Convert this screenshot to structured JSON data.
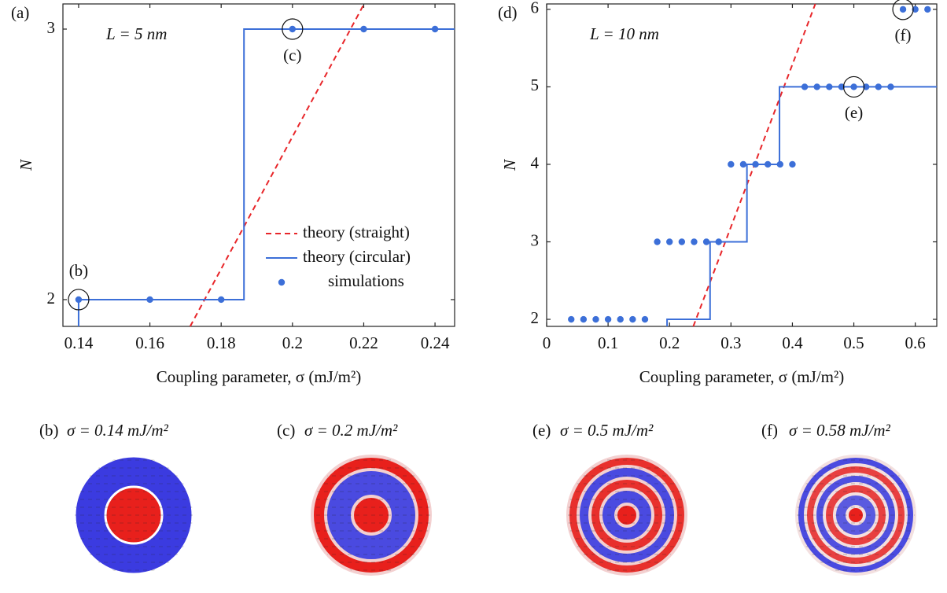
{
  "chart_data": [
    {
      "type": "line",
      "panel": "(a)",
      "text_annotation": "L = 5 nm",
      "xlabel": "Coupling parameter, σ (mJ/m²)",
      "ylabel": "N",
      "xlim": [
        0.1356,
        0.2455
      ],
      "ylim": [
        1.901,
        3.093
      ],
      "xticks": [
        0.14,
        0.16,
        0.18,
        0.2,
        0.22,
        0.24
      ],
      "yticks": [
        2,
        3
      ],
      "grid": false,
      "legend": "lower right",
      "series": [
        {
          "name": "theory (straight)",
          "style": "dashed",
          "color": "#e8262a",
          "x": [
            0.1713,
            0.2201
          ],
          "y": [
            1.901,
            3.093
          ]
        },
        {
          "name": "theory (circular)",
          "style": "solid",
          "color": "#3c6fd8",
          "x": [
            0.14,
            0.14,
            0.1864,
            0.1864,
            0.2455
          ],
          "y": [
            1.901,
            2,
            2,
            3,
            3
          ]
        },
        {
          "name": "simulations",
          "style": "markers",
          "color": "#3c6fd8",
          "x": [
            0.14,
            0.16,
            0.18,
            0.2,
            0.22,
            0.24
          ],
          "y": [
            2,
            2,
            2,
            3,
            3,
            3
          ]
        }
      ],
      "annotations": [
        {
          "text": "(b)",
          "x": 0.14,
          "y": 2
        },
        {
          "text": "(c)",
          "x": 0.2,
          "y": 3
        }
      ]
    },
    {
      "type": "line",
      "panel": "(d)",
      "text_annotation": "L = 10 nm",
      "xlabel": "Coupling parameter, σ (mJ/m²)",
      "ylabel": "N",
      "xlim": [
        0,
        0.635
      ],
      "ylim": [
        1.909,
        6.07
      ],
      "xticks": [
        0,
        0.1,
        0.2,
        0.3,
        0.4,
        0.5,
        0.6
      ],
      "yticks": [
        2,
        3,
        4,
        5,
        6
      ],
      "grid": false,
      "series": [
        {
          "style": "dashed",
          "color": "#e8262a",
          "x": [
            0.2387,
            0.4373
          ],
          "y": [
            1.909,
            6.07
          ]
        },
        {
          "style": "solid",
          "color": "#3c6fd8",
          "x": [
            0.196,
            0.196,
            0.266,
            0.266,
            0.326,
            0.326,
            0.379,
            0.379,
            0.635
          ],
          "y": [
            1.909,
            2,
            2,
            3,
            3,
            4,
            4,
            5,
            5
          ]
        },
        {
          "style": "markers",
          "color": "#3c6fd8",
          "x": [
            0.04,
            0.06,
            0.08,
            0.1,
            0.12,
            0.14,
            0.16,
            0.18,
            0.2,
            0.22,
            0.24,
            0.26,
            0.28,
            0.3,
            0.32,
            0.34,
            0.36,
            0.38,
            0.4,
            0.42,
            0.44,
            0.46,
            0.48,
            0.5,
            0.52,
            0.54,
            0.56,
            0.58,
            0.6,
            0.62
          ],
          "y": [
            2,
            2,
            2,
            2,
            2,
            2,
            2,
            3,
            3,
            3,
            3,
            3,
            3,
            4,
            4,
            4,
            4,
            4,
            4,
            5,
            5,
            5,
            5,
            5,
            5,
            5,
            5,
            6,
            6,
            6
          ]
        }
      ],
      "annotations": [
        {
          "text": "(e)",
          "x": 0.5,
          "y": 5
        },
        {
          "text": "(f)",
          "x": 0.58,
          "y": 6
        }
      ]
    }
  ],
  "figures": [
    {
      "panel": "(b)",
      "caption": "σ = 0.14 mJ/m²"
    },
    {
      "panel": "(c)",
      "caption": "σ = 0.2 mJ/m²"
    },
    {
      "panel": "(e)",
      "caption": "σ = 0.5 mJ/m²"
    },
    {
      "panel": "(f)",
      "caption": "σ = 0.58 mJ/m²"
    }
  ]
}
